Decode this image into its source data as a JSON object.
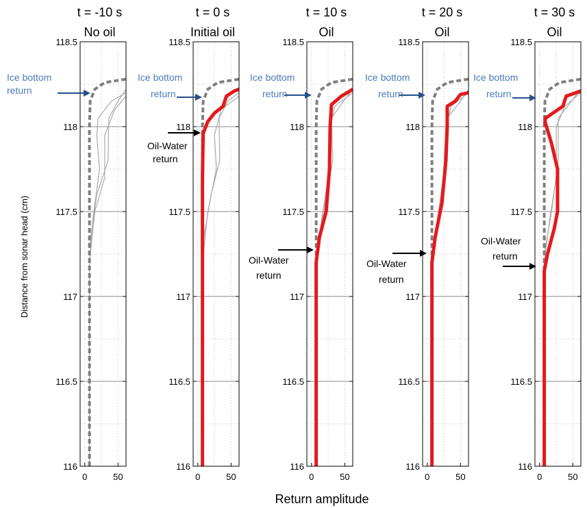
{
  "chart_data": {
    "type": "line",
    "xlabel": "Return amplitude",
    "ylabel": "Distance from sonar head (cm)",
    "ylim": [
      116,
      118.5
    ],
    "xlim": [
      -7,
      62
    ],
    "yticks": [
      "118.5",
      "118",
      "117.5",
      "117",
      "116.5",
      "116"
    ],
    "xticks": [
      "0",
      "50"
    ],
    "grid": true,
    "colors": {
      "ice_reference": "#7f7f7f",
      "oil_profile": "#e41a1c",
      "raw_traces": "#aaaaaa",
      "ice_label": "#4a7ab5"
    },
    "panels": [
      {
        "title_line1": "t = -10 s",
        "title_line2": "No oil",
        "ice_reference": [
          [
            7,
            116
          ],
          [
            7,
            117.2
          ],
          [
            7,
            118
          ],
          [
            8,
            118.15
          ],
          [
            15,
            118.22
          ],
          [
            30,
            118.26
          ],
          [
            62,
            118.28
          ]
        ],
        "oil_profile": [],
        "traces": [
          [
            [
              7,
              116
            ],
            [
              7,
              117.2
            ],
            [
              12,
              117.45
            ],
            [
              22,
              117.75
            ],
            [
              18,
              117.95
            ],
            [
              20,
              118.05
            ],
            [
              40,
              118.15
            ],
            [
              62,
              118.2
            ]
          ],
          [
            [
              7,
              117.2
            ],
            [
              15,
              117.5
            ],
            [
              30,
              117.7
            ],
            [
              30,
              117.95
            ],
            [
              45,
              118.1
            ],
            [
              62,
              118.18
            ]
          ],
          [
            [
              7,
              117.3
            ],
            [
              18,
              117.6
            ],
            [
              35,
              117.8
            ],
            [
              36,
              118.05
            ],
            [
              50,
              118.15
            ],
            [
              62,
              118.22
            ]
          ]
        ],
        "annotations": [
          {
            "text": "Ice bottom",
            "color": "blue"
          },
          {
            "text": "return",
            "color": "blue"
          }
        ]
      },
      {
        "title_line1": "t = 0 s",
        "title_line2": "Initial oil",
        "ice_reference": [
          [
            7,
            116
          ],
          [
            7,
            117.2
          ],
          [
            7,
            118
          ],
          [
            8,
            118.15
          ],
          [
            15,
            118.22
          ],
          [
            30,
            118.26
          ],
          [
            62,
            118.28
          ]
        ],
        "oil_profile": [
          [
            7,
            116
          ],
          [
            7,
            117.7
          ],
          [
            8,
            117.96
          ],
          [
            15,
            118.03
          ],
          [
            25,
            118.08
          ],
          [
            38,
            118.12
          ],
          [
            43,
            118.18
          ],
          [
            55,
            118.21
          ],
          [
            62,
            118.22
          ]
        ],
        "traces": [
          [
            [
              7,
              117.2
            ],
            [
              15,
              117.5
            ],
            [
              28,
              117.75
            ],
            [
              25,
              117.95
            ],
            [
              35,
              118.1
            ],
            [
              62,
              118.18
            ]
          ],
          [
            [
              7,
              117.3
            ],
            [
              20,
              117.6
            ],
            [
              33,
              117.8
            ],
            [
              32,
              118.05
            ],
            [
              45,
              118.15
            ],
            [
              62,
              118.2
            ]
          ]
        ],
        "annotations": [
          {
            "text": "Ice bottom",
            "color": "blue"
          },
          {
            "text": "return",
            "color": "blue"
          },
          {
            "text": "Oil-Water",
            "color": "black"
          },
          {
            "text": "return",
            "color": "black"
          }
        ]
      },
      {
        "title_line1": "t = 10 s",
        "title_line2": "Oil",
        "ice_reference": [
          [
            7,
            116
          ],
          [
            7,
            117.2
          ],
          [
            7,
            118
          ],
          [
            8,
            118.15
          ],
          [
            15,
            118.22
          ],
          [
            30,
            118.26
          ],
          [
            62,
            118.28
          ]
        ],
        "oil_profile": [
          [
            7,
            116
          ],
          [
            7,
            117.2
          ],
          [
            12,
            117.35
          ],
          [
            22,
            117.5
          ],
          [
            27,
            117.75
          ],
          [
            28,
            118
          ],
          [
            30,
            118.13
          ],
          [
            45,
            118.18
          ],
          [
            62,
            118.22
          ]
        ],
        "traces": [
          [
            [
              7,
              117.2
            ],
            [
              15,
              117.45
            ],
            [
              25,
              117.7
            ],
            [
              28,
              118
            ],
            [
              35,
              118.12
            ],
            [
              62,
              118.2
            ]
          ],
          [
            [
              7,
              117.25
            ],
            [
              18,
              117.5
            ],
            [
              32,
              117.8
            ],
            [
              30,
              118.05
            ],
            [
              48,
              118.15
            ],
            [
              62,
              118.22
            ]
          ]
        ],
        "annotations": [
          {
            "text": "Ice bottom",
            "color": "blue"
          },
          {
            "text": "return",
            "color": "blue"
          },
          {
            "text": "Oil-Water",
            "color": "black"
          },
          {
            "text": "return",
            "color": "black"
          }
        ]
      },
      {
        "title_line1": "t = 20 s",
        "title_line2": "Oil",
        "ice_reference": [
          [
            7,
            116
          ],
          [
            7,
            117.2
          ],
          [
            7,
            118
          ],
          [
            8,
            118.15
          ],
          [
            15,
            118.22
          ],
          [
            30,
            118.26
          ],
          [
            62,
            118.28
          ]
        ],
        "oil_profile": [
          [
            7,
            116
          ],
          [
            7,
            117.2
          ],
          [
            12,
            117.35
          ],
          [
            22,
            117.55
          ],
          [
            28,
            117.8
          ],
          [
            30,
            118
          ],
          [
            30,
            118.12
          ],
          [
            42,
            118.15
          ],
          [
            50,
            118.19
          ],
          [
            62,
            118.2
          ]
        ],
        "traces": [
          [
            [
              7,
              117.2
            ],
            [
              15,
              117.45
            ],
            [
              24,
              117.7
            ],
            [
              28,
              118
            ],
            [
              36,
              118.12
            ],
            [
              62,
              118.2
            ]
          ],
          [
            [
              7,
              117.25
            ],
            [
              18,
              117.5
            ],
            [
              30,
              117.8
            ],
            [
              30,
              118.05
            ],
            [
              50,
              118.15
            ],
            [
              62,
              118.22
            ]
          ]
        ],
        "annotations": [
          {
            "text": "Ice bottom",
            "color": "blue"
          },
          {
            "text": "return",
            "color": "blue"
          },
          {
            "text": "Oil-Water",
            "color": "black"
          },
          {
            "text": "return",
            "color": "black"
          }
        ]
      },
      {
        "title_line1": "t = 30 s",
        "title_line2": "Oil",
        "ice_reference": [
          [
            7,
            116
          ],
          [
            7,
            117.2
          ],
          [
            7,
            118
          ],
          [
            8,
            118.15
          ],
          [
            15,
            118.22
          ],
          [
            30,
            118.26
          ],
          [
            62,
            118.28
          ]
        ],
        "oil_profile": [
          [
            7,
            116
          ],
          [
            7,
            117.15
          ],
          [
            12,
            117.25
          ],
          [
            22,
            117.4
          ],
          [
            27,
            117.5
          ],
          [
            27,
            117.75
          ],
          [
            18,
            117.9
          ],
          [
            8,
            118.03
          ],
          [
            9,
            118.05
          ],
          [
            35,
            118.12
          ],
          [
            40,
            118.18
          ],
          [
            55,
            118.2
          ],
          [
            62,
            118.21
          ]
        ],
        "traces": [
          [
            [
              7,
              117.2
            ],
            [
              15,
              117.45
            ],
            [
              25,
              117.7
            ],
            [
              25,
              118
            ],
            [
              38,
              118.12
            ],
            [
              62,
              118.2
            ]
          ],
          [
            [
              7,
              117.25
            ],
            [
              18,
              117.5
            ],
            [
              28,
              117.8
            ],
            [
              28,
              118.05
            ],
            [
              48,
              118.15
            ],
            [
              62,
              118.22
            ]
          ]
        ],
        "annotations": [
          {
            "text": "Ice bottom",
            "color": "blue"
          },
          {
            "text": "return",
            "color": "blue"
          },
          {
            "text": "Oil-Water",
            "color": "black"
          },
          {
            "text": "return",
            "color": "black"
          }
        ]
      }
    ]
  }
}
